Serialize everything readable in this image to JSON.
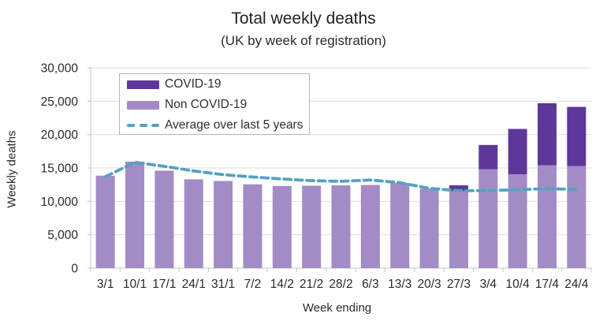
{
  "title": "Total weekly deaths",
  "subtitle": "(UK by week of registration)",
  "chart_data": {
    "type": "bar",
    "stacked": true,
    "title": "Total weekly deaths",
    "subtitle": "(UK by week of registration)",
    "xlabel": "Week ending",
    "ylabel": "Weekly deaths",
    "ylim": [
      0,
      30000
    ],
    "ytick_step": 5000,
    "grid": true,
    "legend_position": "top-left",
    "categories": [
      "3/1",
      "10/1",
      "17/1",
      "24/1",
      "31/1",
      "7/2",
      "14/2",
      "21/2",
      "28/2",
      "6/3",
      "13/3",
      "20/3",
      "27/3",
      "3/4",
      "10/4",
      "17/4",
      "24/4"
    ],
    "series": [
      {
        "name": "COVID-19",
        "role": "covid",
        "kind": "bar",
        "color": "#5e3899",
        "values": [
          0,
          0,
          0,
          0,
          0,
          0,
          0,
          0,
          0,
          0,
          0,
          0,
          900,
          3650,
          6800,
          9300,
          8850
        ]
      },
      {
        "name": "Non COVID-19",
        "role": "noncovid",
        "kind": "bar",
        "color": "#a38bc6",
        "values": [
          13850,
          15950,
          14600,
          13300,
          13050,
          12550,
          12300,
          12350,
          12400,
          12450,
          12750,
          11900,
          11500,
          14800,
          14050,
          15400,
          15300
        ]
      },
      {
        "name": "Average over last 5 years",
        "role": "average",
        "kind": "line",
        "dashed": true,
        "color": "#55a1c1",
        "values": [
          13700,
          15850,
          15250,
          14550,
          14000,
          13650,
          13350,
          13100,
          13000,
          13200,
          12800,
          11950,
          11600,
          11600,
          11750,
          11900,
          11800
        ]
      }
    ],
    "colors": {
      "gridline": "#dedede",
      "axis": "#c4c4c4",
      "tick_label": "#2a2a2a"
    }
  }
}
